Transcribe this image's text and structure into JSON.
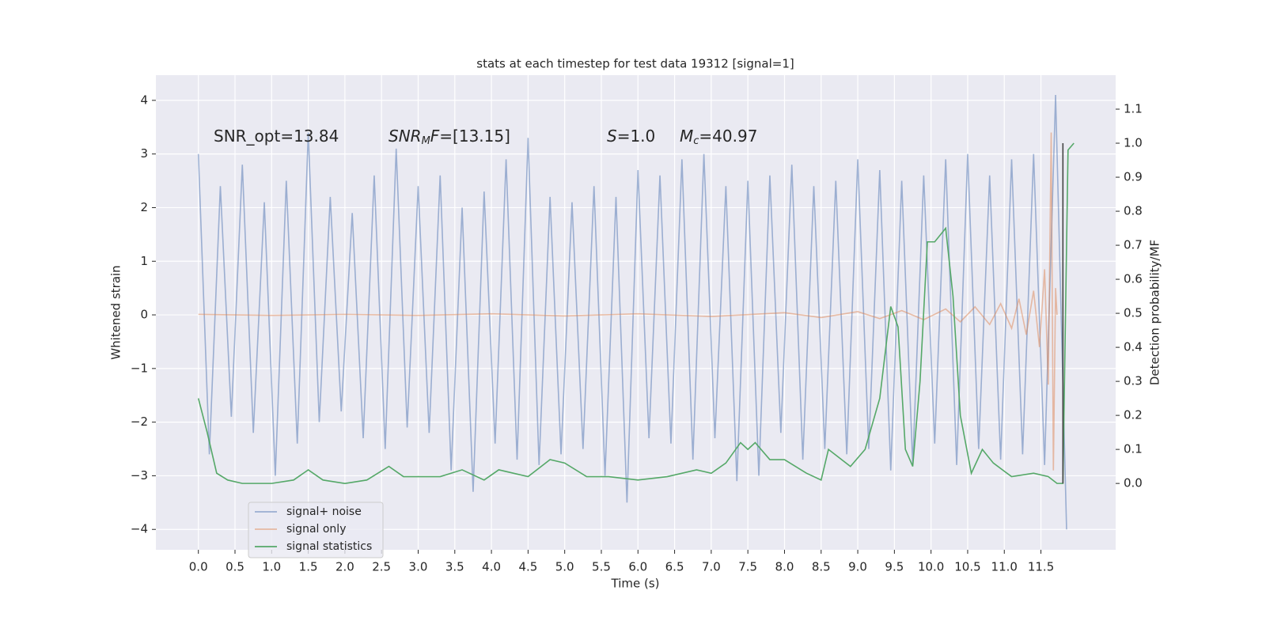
{
  "chart_data": {
    "type": "line",
    "title": "stats at each timestep for test data 19312 [signal=1]",
    "xlabel": "Time (s)",
    "ylabel": "Whitened strain",
    "y2label": "Detection probability/MF",
    "xlim": [
      -0.58,
      12.52
    ],
    "ylim": [
      -4.38,
      4.47
    ],
    "y2lim": [
      -0.195,
      1.2
    ],
    "xticks": [
      {
        "value": 0,
        "label": "0.0"
      },
      0.5,
      {
        "value": 1,
        "label": "1.0"
      },
      1.5,
      {
        "value": 2,
        "label": "2.0"
      },
      2.5,
      {
        "value": 3,
        "label": "3.0"
      },
      3.5,
      {
        "value": 4,
        "label": "4.0"
      },
      4.5,
      {
        "value": 5,
        "label": "5.0"
      },
      5.5,
      {
        "value": 6,
        "label": "6.0"
      },
      6.5,
      {
        "value": 7,
        "label": "7.0"
      },
      7.5,
      {
        "value": 8,
        "label": "8.0"
      },
      8.5,
      {
        "value": 9,
        "label": "9.0"
      },
      9.5,
      {
        "value": 10,
        "label": "10.0"
      },
      10.5,
      {
        "value": 11,
        "label": "11.0"
      },
      11.5
    ],
    "yticks": [
      {
        "value": -4,
        "label": "−4"
      },
      {
        "value": -3,
        "label": "−3"
      },
      {
        "value": -2,
        "label": "−2"
      },
      {
        "value": -1,
        "label": "−1"
      },
      0,
      1,
      2,
      3,
      4
    ],
    "y2ticks": [
      {
        "value": 0,
        "label": "0.0"
      },
      0.1,
      0.2,
      0.3,
      0.4,
      0.5,
      0.6,
      0.7,
      0.8,
      0.9,
      {
        "value": 1,
        "label": "1.0"
      },
      1.1
    ],
    "grid": true,
    "legend": "lower left",
    "annotations": [
      [
        {
          "text": "SNR_opt=13.84"
        }
      ],
      [
        {
          "text": "SNR",
          "italic": true
        },
        {
          "text": "M",
          "italic": true,
          "sub": true
        },
        {
          "text": "F",
          "italic": true
        },
        {
          "text": "=[13.15]"
        }
      ],
      [
        {
          "text": "S",
          "italic": true
        },
        {
          "text": "=1.0"
        }
      ],
      [
        {
          "text": "M",
          "italic": true
        },
        {
          "text": "c",
          "italic": true,
          "sub": true
        },
        {
          "text": "=40.97"
        }
      ]
    ],
    "vline": {
      "x": 11.8,
      "color": "#444444"
    },
    "series": [
      {
        "name": "signal+ noise",
        "color": "#4c72b0",
        "opacity": 0.5,
        "x": [
          0,
          0.15,
          0.3,
          0.45,
          0.6,
          0.75,
          0.9,
          1.05,
          1.2,
          1.35,
          1.5,
          1.65,
          1.8,
          1.95,
          2.1,
          2.25,
          2.4,
          2.55,
          2.7,
          2.85,
          3,
          3.15,
          3.3,
          3.45,
          3.6,
          3.75,
          3.9,
          4.05,
          4.2,
          4.35,
          4.5,
          4.65,
          4.8,
          4.95,
          5.1,
          5.25,
          5.4,
          5.55,
          5.7,
          5.85,
          6,
          6.15,
          6.3,
          6.45,
          6.6,
          6.75,
          6.9,
          7.05,
          7.2,
          7.35,
          7.5,
          7.65,
          7.8,
          7.95,
          8.1,
          8.25,
          8.4,
          8.55,
          8.7,
          8.85,
          9,
          9.15,
          9.3,
          9.45,
          9.6,
          9.75,
          9.9,
          10.05,
          10.2,
          10.35,
          10.5,
          10.65,
          10.8,
          10.95,
          11.1,
          11.25,
          11.4,
          11.55,
          11.7,
          11.85
        ],
        "values": [
          3.0,
          -2.6,
          2.4,
          -1.9,
          2.8,
          -2.2,
          2.1,
          -3.0,
          2.5,
          -2.4,
          3.4,
          -2.0,
          2.2,
          -1.8,
          1.9,
          -2.3,
          2.6,
          -2.5,
          3.1,
          -2.1,
          2.4,
          -2.2,
          2.6,
          -2.9,
          2.0,
          -3.3,
          2.3,
          -2.4,
          2.9,
          -2.7,
          3.3,
          -2.8,
          2.2,
          -2.6,
          2.1,
          -2.5,
          2.4,
          -3.0,
          2.2,
          -3.5,
          2.7,
          -2.3,
          2.6,
          -2.4,
          2.9,
          -2.7,
          3.0,
          -2.3,
          2.4,
          -3.1,
          2.5,
          -3.0,
          2.6,
          -2.2,
          2.8,
          -2.7,
          2.4,
          -2.5,
          2.5,
          -2.6,
          2.9,
          -2.5,
          2.7,
          -2.9,
          2.5,
          -2.8,
          2.6,
          -2.4,
          2.9,
          -2.8,
          3.0,
          -2.5,
          2.6,
          -2.7,
          2.9,
          -2.6,
          3.0,
          -2.8,
          4.1,
          -4.0
        ]
      },
      {
        "name": "signal only",
        "color": "#dd8452",
        "opacity": 0.5,
        "x": [
          0,
          1,
          2,
          3,
          4,
          5,
          6,
          7,
          8,
          8.5,
          9,
          9.3,
          9.6,
          9.9,
          10.2,
          10.4,
          10.6,
          10.8,
          10.95,
          11.1,
          11.2,
          11.3,
          11.4,
          11.48,
          11.55,
          11.6,
          11.64,
          11.67,
          11.7,
          11.72
        ],
        "values": [
          0.01,
          -0.01,
          0.01,
          -0.01,
          0.02,
          -0.02,
          0.02,
          -0.03,
          0.04,
          -0.05,
          0.06,
          -0.07,
          0.08,
          -0.09,
          0.11,
          -0.13,
          0.15,
          -0.18,
          0.21,
          -0.25,
          0.3,
          -0.37,
          0.45,
          -0.6,
          0.85,
          -1.3,
          3.4,
          -2.9,
          0.5,
          0.0
        ]
      },
      {
        "name": "signal statistics",
        "color": "#55a868",
        "opacity": 1,
        "axis": "y2",
        "x": [
          0,
          0.12,
          0.25,
          0.4,
          0.6,
          1.0,
          1.3,
          1.5,
          1.7,
          2.0,
          2.3,
          2.6,
          2.8,
          3.0,
          3.3,
          3.6,
          3.9,
          4.1,
          4.5,
          4.8,
          5.0,
          5.3,
          5.6,
          6.0,
          6.4,
          6.8,
          7.0,
          7.2,
          7.4,
          7.5,
          7.6,
          7.8,
          8.0,
          8.3,
          8.5,
          8.6,
          8.9,
          9.1,
          9.3,
          9.45,
          9.55,
          9.65,
          9.75,
          9.85,
          9.95,
          10.05,
          10.2,
          10.3,
          10.4,
          10.55,
          10.7,
          10.85,
          11.1,
          11.4,
          11.6,
          11.72,
          11.8,
          11.87,
          11.95
        ],
        "values": [
          0.25,
          0.15,
          0.03,
          0.01,
          0.0,
          0.0,
          0.01,
          0.04,
          0.01,
          0.0,
          0.01,
          0.05,
          0.02,
          0.02,
          0.02,
          0.04,
          0.01,
          0.04,
          0.02,
          0.07,
          0.06,
          0.02,
          0.02,
          0.01,
          0.02,
          0.04,
          0.03,
          0.06,
          0.12,
          0.1,
          0.12,
          0.07,
          0.07,
          0.03,
          0.01,
          0.1,
          0.05,
          0.1,
          0.25,
          0.52,
          0.46,
          0.1,
          0.05,
          0.3,
          0.71,
          0.71,
          0.75,
          0.55,
          0.2,
          0.03,
          0.1,
          0.06,
          0.02,
          0.03,
          0.02,
          0.0,
          0.0,
          0.98,
          1.0
        ]
      }
    ]
  }
}
